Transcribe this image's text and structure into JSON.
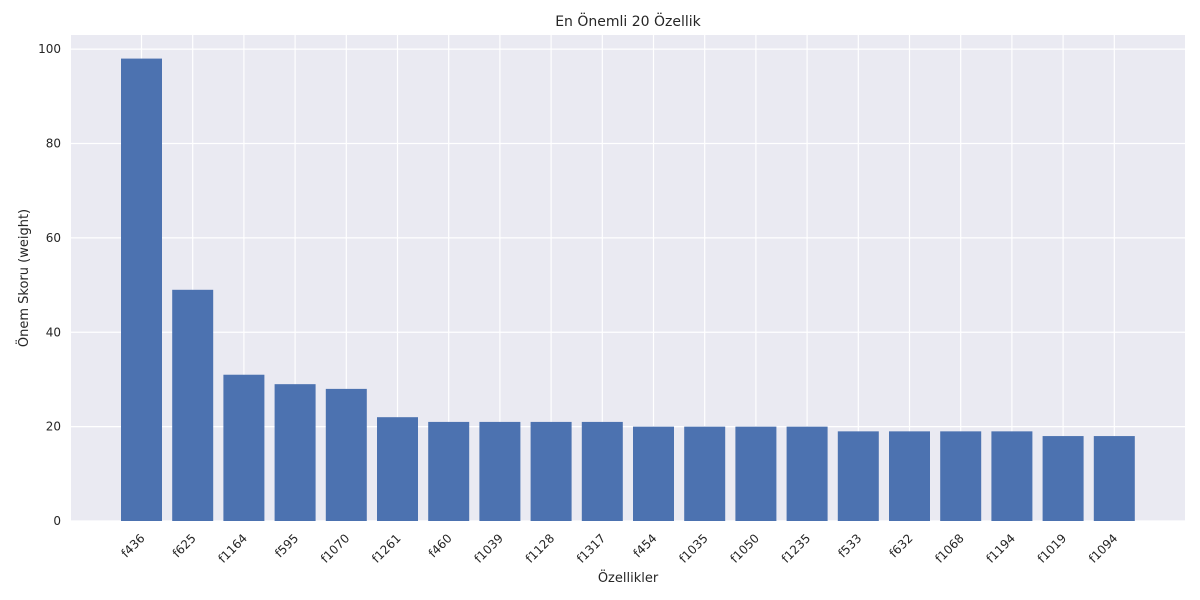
{
  "chart_data": {
    "type": "bar",
    "title": "En Önemli 20 Özellik",
    "xlabel": "Özellikler",
    "ylabel": "Önem Skoru (weight)",
    "ylim": [
      0,
      103
    ],
    "yticks": [
      0,
      20,
      40,
      60,
      80,
      100
    ],
    "grid": true,
    "categories": [
      "f436",
      "f625",
      "f1164",
      "f595",
      "f1070",
      "f1261",
      "f460",
      "f1039",
      "f1128",
      "f1317",
      "f454",
      "f1035",
      "f1050",
      "f1235",
      "f533",
      "f632",
      "f1068",
      "f1194",
      "f1019",
      "f1094"
    ],
    "values": [
      98,
      49,
      31,
      29,
      28,
      22,
      21,
      21,
      21,
      21,
      20,
      20,
      20,
      20,
      19,
      19,
      19,
      19,
      18,
      18
    ],
    "colors": {
      "bar": "#4c72b0",
      "plot_background": "#eaeaf2",
      "grid": "#ffffff",
      "text": "#262626"
    }
  }
}
